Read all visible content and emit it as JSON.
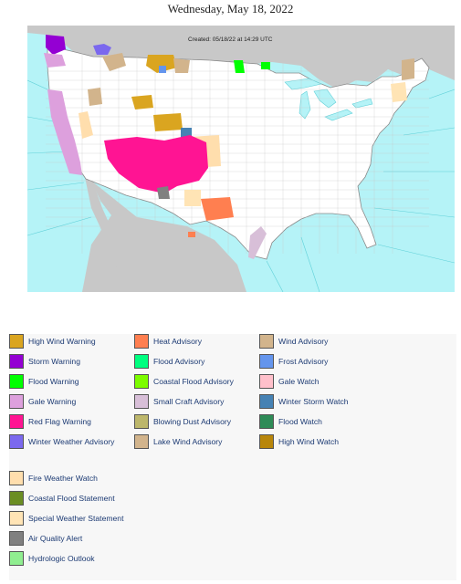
{
  "title": "Wednesday, May 18, 2022",
  "map": {
    "created": "Created: 05/18/22 at 14:29 UTC",
    "colors": {
      "ocean": "#b5f3f7",
      "land": "#ffffff",
      "foreign_land": "#c8c8c8",
      "water_lines": "#5fd0d8"
    }
  },
  "legend": {
    "columns": [
      [
        {
          "label": "High Wind Warning",
          "color": "#daa520"
        },
        {
          "label": "Storm Warning",
          "color": "#9400d3"
        },
        {
          "label": "Flood Warning",
          "color": "#00ff00"
        },
        {
          "label": "Gale Warning",
          "color": "#dda0dd"
        },
        {
          "label": "Red Flag Warning",
          "color": "#ff1493"
        },
        {
          "label": "Winter Weather Advisory",
          "color": "#7b68ee"
        }
      ],
      [
        {
          "label": "Heat Advisory",
          "color": "#ff7f50"
        },
        {
          "label": "Flood Advisory",
          "color": "#00ff7f"
        },
        {
          "label": "Coastal Flood Advisory",
          "color": "#7cfc00"
        },
        {
          "label": "Small Craft Advisory",
          "color": "#d8bfd8"
        },
        {
          "label": "Blowing Dust Advisory",
          "color": "#bdb76b"
        },
        {
          "label": "Lake Wind Advisory",
          "color": "#d2b48c"
        }
      ],
      [
        {
          "label": "Wind Advisory",
          "color": "#d2b48c"
        },
        {
          "label": "Frost Advisory",
          "color": "#6495ed"
        },
        {
          "label": "Gale Watch",
          "color": "#ffc0cb"
        },
        {
          "label": "Winter Storm Watch",
          "color": "#4682b4"
        },
        {
          "label": "Flood Watch",
          "color": "#2e8b57"
        },
        {
          "label": "High Wind Watch",
          "color": "#b8860b"
        }
      ],
      [
        {
          "label": "Fire Weather Watch",
          "color": "#ffdead"
        },
        {
          "label": "Coastal Flood Statement",
          "color": "#6b8e23"
        },
        {
          "label": "Special Weather Statement",
          "color": "#ffe4b5"
        },
        {
          "label": "Air Quality Alert",
          "color": "#808080"
        },
        {
          "label": "Hydrologic Outlook",
          "color": "#90ee90"
        }
      ]
    ]
  }
}
